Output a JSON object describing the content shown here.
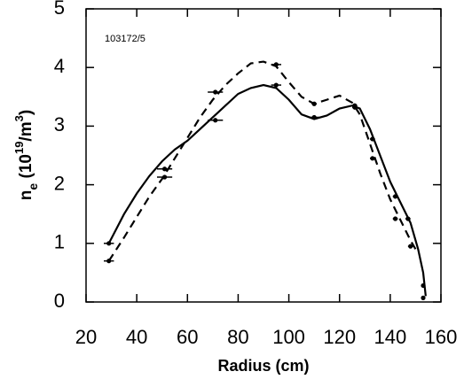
{
  "chart_data": {
    "type": "line",
    "annotation": "103172/5",
    "xlabel": "Radius (cm)",
    "ylabel": [
      {
        "text": "n"
      },
      {
        "text": "e",
        "shift": "sub"
      },
      {
        "text": " (10"
      },
      {
        "text": "19",
        "shift": "super"
      },
      {
        "text": "/m"
      },
      {
        "text": "3",
        "shift": "super"
      },
      {
        "text": ")"
      }
    ],
    "xlim": [
      20,
      160
    ],
    "xticks": [
      20,
      40,
      60,
      80,
      100,
      120,
      140,
      160
    ],
    "ylim": [
      0,
      5
    ],
    "yticks": [
      0,
      1,
      2,
      3,
      4,
      5
    ],
    "color": "#000000",
    "series": [
      {
        "style": "solid",
        "x": [
          29,
          35,
          40,
          45,
          50,
          55,
          60,
          65,
          70,
          75,
          80,
          85,
          90,
          95,
          100,
          105,
          110,
          115,
          120,
          125,
          128,
          132,
          136,
          140,
          144,
          148,
          151,
          153,
          154
        ],
        "values": [
          1.0,
          1.5,
          1.85,
          2.15,
          2.4,
          2.6,
          2.75,
          2.95,
          3.15,
          3.35,
          3.55,
          3.65,
          3.7,
          3.65,
          3.45,
          3.2,
          3.12,
          3.18,
          3.3,
          3.35,
          3.3,
          2.95,
          2.5,
          2.05,
          1.7,
          1.35,
          0.9,
          0.5,
          0.1
        ],
        "points": {
          "x": [
            29,
            51,
            71,
            95,
            110,
            126,
            133,
            142,
            147,
            153
          ],
          "values": [
            1.0,
            2.13,
            3.1,
            3.7,
            3.15,
            3.35,
            2.78,
            1.8,
            1.42,
            0.28
          ],
          "xerr": [
            2,
            3,
            3,
            2,
            2,
            1,
            1,
            1,
            1,
            0.5
          ]
        }
      },
      {
        "style": "dashed",
        "x": [
          29,
          35,
          40,
          45,
          50,
          55,
          60,
          65,
          70,
          75,
          80,
          85,
          90,
          95,
          100,
          105,
          110,
          115,
          120,
          125,
          128,
          132,
          136,
          140,
          144,
          148,
          150
        ],
        "values": [
          0.7,
          1.1,
          1.45,
          1.8,
          2.1,
          2.45,
          2.8,
          3.15,
          3.45,
          3.7,
          3.9,
          4.07,
          4.1,
          4.02,
          3.75,
          3.5,
          3.38,
          3.45,
          3.52,
          3.4,
          3.2,
          2.7,
          2.2,
          1.75,
          1.4,
          1.05,
          0.9
        ],
        "points": {
          "x": [
            29,
            51,
            71,
            95,
            110,
            126,
            133,
            142,
            148,
            153
          ],
          "values": [
            0.7,
            2.27,
            3.58,
            4.05,
            3.38,
            3.32,
            2.45,
            1.42,
            0.95,
            0.07
          ],
          "xerr": [
            2,
            3,
            3,
            2,
            1,
            1,
            1,
            1,
            1,
            0.5
          ]
        }
      }
    ]
  }
}
